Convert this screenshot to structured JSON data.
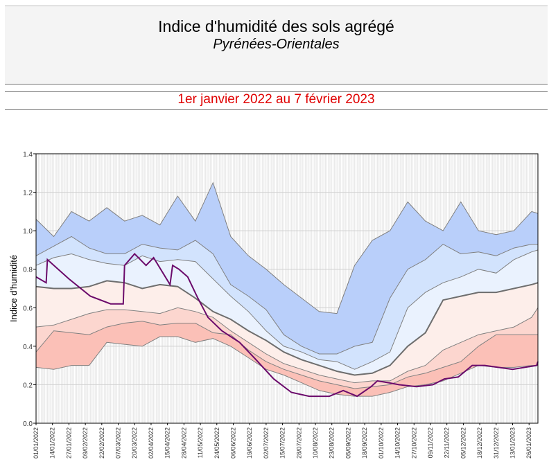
{
  "header": {
    "title": "Indice d'humidité des sols agrégé",
    "subtitle": "Pyrénées-Orientales",
    "period": "1er janvier 2022 au 7 février 2023",
    "period_color": "#e00000"
  },
  "chart_data": {
    "type": "area",
    "title": "Indice d'humidité des sols agrégé",
    "ylabel": "Indice d'humidité",
    "xlabel": "",
    "ylim": [
      0,
      1.4
    ],
    "yticks": [
      "0.0",
      "0.2",
      "0.4",
      "0.6",
      "0.8",
      "1.0",
      "1.2",
      "1.4"
    ],
    "xlim": [
      "2022-01-01",
      "2023-02-02"
    ],
    "grid": true,
    "xtick_labels": [
      "01/01/2022",
      "14/01/2022",
      "27/01/2022",
      "09/02/2022",
      "22/02/2022",
      "07/03/2022",
      "20/03/2022",
      "02/04/2022",
      "15/04/2022",
      "28/04/2022",
      "11/05/2022",
      "24/05/2022",
      "06/06/2022",
      "19/06/2022",
      "02/07/2022",
      "15/07/2022",
      "28/07/2022",
      "10/08/2022",
      "23/08/2022",
      "05/09/2022",
      "18/09/2022",
      "01/10/2022",
      "14/10/2022",
      "27/10/2022",
      "09/11/2022",
      "22/11/2022",
      "05/12/2022",
      "18/12/2022",
      "31/12/2022",
      "13/01/2023",
      "26/01/2023"
    ],
    "band_dates": [
      "2022-01-01",
      "2022-01-15",
      "2022-01-29",
      "2022-02-12",
      "2022-02-26",
      "2022-03-12",
      "2022-03-26",
      "2022-04-09",
      "2022-04-23",
      "2022-05-07",
      "2022-05-21",
      "2022-06-04",
      "2022-06-18",
      "2022-07-02",
      "2022-07-16",
      "2022-07-30",
      "2022-08-13",
      "2022-08-27",
      "2022-09-10",
      "2022-09-24",
      "2022-10-08",
      "2022-10-22",
      "2022-11-05",
      "2022-11-19",
      "2022-12-03",
      "2022-12-17",
      "2022-12-31",
      "2023-01-14",
      "2023-01-28",
      "2023-02-02"
    ],
    "bands": [
      {
        "values": [
          1.06,
          0.97,
          1.1,
          1.05,
          1.12,
          1.05,
          1.08,
          1.03,
          1.18,
          1.05,
          1.25,
          0.97,
          0.87,
          0.8,
          0.72,
          0.65,
          0.58,
          0.57,
          0.82,
          0.95,
          1.0,
          1.15,
          1.05,
          1.0,
          1.15,
          1.0,
          0.98,
          1.0,
          1.1,
          1.09
        ],
        "color": "#b9cffa"
      },
      {
        "values": [
          0.87,
          0.92,
          0.97,
          0.91,
          0.88,
          0.88,
          0.93,
          0.91,
          0.9,
          0.95,
          0.88,
          0.72,
          0.66,
          0.59,
          0.46,
          0.4,
          0.36,
          0.36,
          0.4,
          0.42,
          0.65,
          0.8,
          0.85,
          0.93,
          0.88,
          0.89,
          0.87,
          0.91,
          0.93,
          0.93
        ],
        "color": "#d2e3fd"
      },
      {
        "values": [
          0.82,
          0.86,
          0.88,
          0.85,
          0.83,
          0.82,
          0.87,
          0.84,
          0.85,
          0.84,
          0.75,
          0.66,
          0.58,
          0.48,
          0.4,
          0.37,
          0.33,
          0.32,
          0.28,
          0.32,
          0.37,
          0.6,
          0.68,
          0.73,
          0.76,
          0.8,
          0.78,
          0.85,
          0.89,
          0.9
        ],
        "color": "#eaf2fe"
      },
      {
        "values": [
          0.71,
          0.7,
          0.7,
          0.71,
          0.74,
          0.73,
          0.7,
          0.72,
          0.71,
          0.65,
          0.58,
          0.54,
          0.48,
          0.43,
          0.37,
          0.33,
          0.3,
          0.27,
          0.25,
          0.26,
          0.3,
          0.4,
          0.47,
          0.64,
          0.66,
          0.68,
          0.68,
          0.7,
          0.72,
          0.73
        ],
        "color": "#fdeeea"
      },
      {
        "values": [
          0.5,
          0.51,
          0.54,
          0.57,
          0.59,
          0.59,
          0.58,
          0.57,
          0.6,
          0.58,
          0.55,
          0.48,
          0.42,
          0.36,
          0.31,
          0.28,
          0.25,
          0.23,
          0.21,
          0.22,
          0.22,
          0.27,
          0.3,
          0.38,
          0.42,
          0.46,
          0.48,
          0.5,
          0.55,
          0.6
        ],
        "color": "#fcd6cf"
      },
      {
        "values": [
          0.37,
          0.48,
          0.47,
          0.46,
          0.5,
          0.52,
          0.53,
          0.51,
          0.52,
          0.52,
          0.47,
          0.46,
          0.38,
          0.32,
          0.28,
          0.25,
          0.22,
          0.2,
          0.18,
          0.19,
          0.2,
          0.24,
          0.26,
          0.29,
          0.32,
          0.4,
          0.46,
          0.46,
          0.46,
          0.46
        ],
        "color": "#fbc0b7"
      },
      {
        "values": [
          0.29,
          0.28,
          0.3,
          0.3,
          0.42,
          0.41,
          0.4,
          0.45,
          0.45,
          0.42,
          0.44,
          0.4,
          0.34,
          0.28,
          0.25,
          0.21,
          0.17,
          0.15,
          0.14,
          0.14,
          0.16,
          0.19,
          0.2,
          0.22,
          0.26,
          0.3,
          0.29,
          0.29,
          0.3,
          0.3
        ]
      }
    ],
    "current": {
      "dates": [
        "2022-01-01",
        "2022-01-09",
        "2022-01-10",
        "2022-01-27",
        "2022-02-13",
        "2022-03-01",
        "2022-03-11",
        "2022-03-12",
        "2022-03-20",
        "2022-03-29",
        "2022-04-04",
        "2022-04-17",
        "2022-04-19",
        "2022-04-24",
        "2022-05-01",
        "2022-05-09",
        "2022-05-17",
        "2022-05-28",
        "2022-06-11",
        "2022-06-24",
        "2022-07-08",
        "2022-07-22",
        "2022-08-05",
        "2022-08-21",
        "2022-09-01",
        "2022-09-12",
        "2022-09-23",
        "2022-09-28",
        "2022-10-07",
        "2022-10-15",
        "2022-10-29",
        "2022-11-11",
        "2022-11-20",
        "2022-12-01",
        "2022-12-12",
        "2022-12-22",
        "2023-01-13",
        "2023-02-01",
        "2023-02-02"
      ],
      "values": [
        0.76,
        0.73,
        0.85,
        0.75,
        0.66,
        0.62,
        0.62,
        0.82,
        0.88,
        0.82,
        0.86,
        0.72,
        0.82,
        0.8,
        0.76,
        0.65,
        0.55,
        0.48,
        0.42,
        0.33,
        0.23,
        0.16,
        0.14,
        0.14,
        0.17,
        0.14,
        0.19,
        0.22,
        0.21,
        0.2,
        0.19,
        0.2,
        0.23,
        0.24,
        0.3,
        0.3,
        0.28,
        0.3,
        0.32
      ],
      "color": "#6b0a6b"
    }
  }
}
